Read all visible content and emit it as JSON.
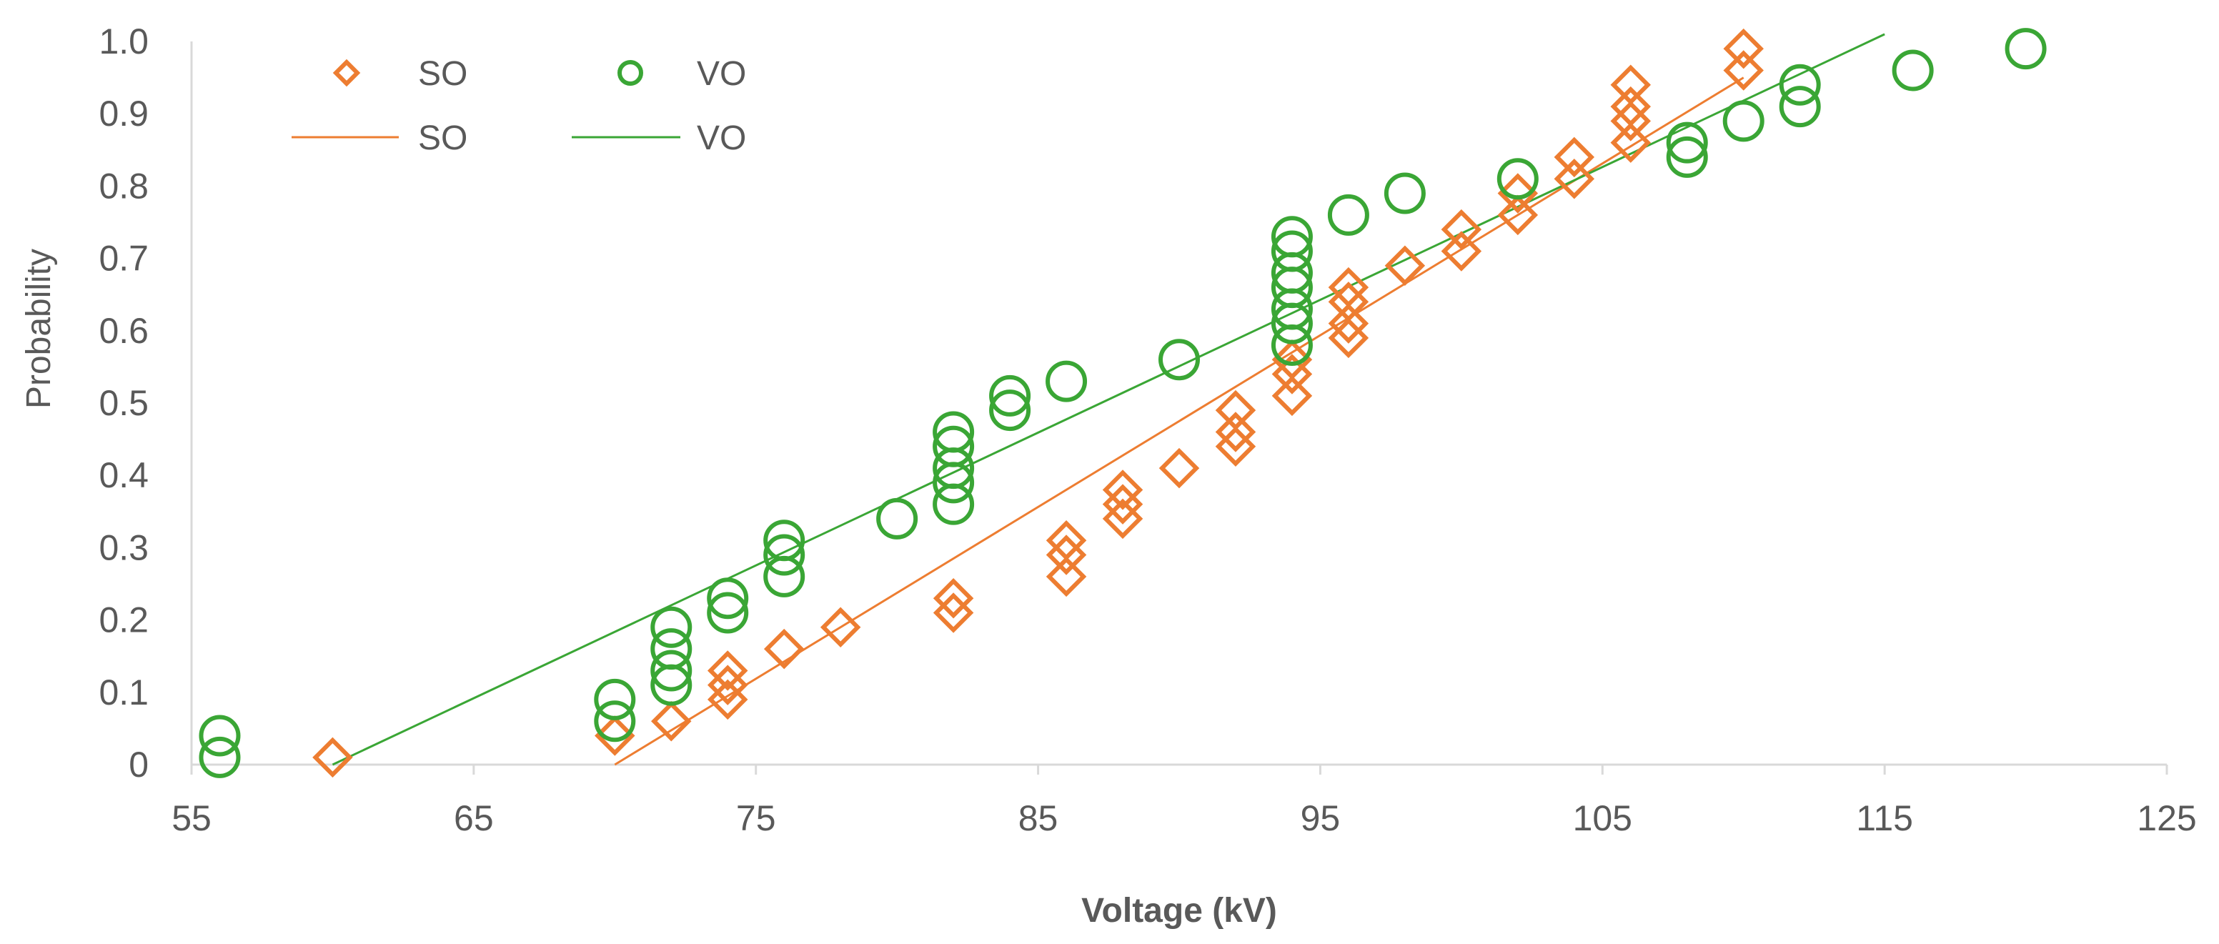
{
  "chart_data": {
    "type": "scatter",
    "title": "",
    "xlabel": "Voltage (kV)",
    "ylabel": "Probability",
    "xlim": [
      55,
      125
    ],
    "ylim": [
      0,
      1.0
    ],
    "x_ticks": [
      "55",
      "65",
      "75",
      "85",
      "95",
      "105",
      "115",
      "125"
    ],
    "y_ticks": [
      "0",
      "0.1",
      "0.2",
      "0.3",
      "0.4",
      "0.5",
      "0.6",
      "0.7",
      "0.8",
      "0.9",
      "1.0"
    ],
    "grid": false,
    "legend_position": "top-left",
    "colors": {
      "so": "#ED7D31",
      "vo": "#3AA635",
      "axis": "#D9D9D9"
    },
    "series": [
      {
        "name": "SO",
        "marker": "diamond",
        "points": [
          [
            60,
            0.01
          ],
          [
            70,
            0.04
          ],
          [
            72,
            0.06
          ],
          [
            74,
            0.09
          ],
          [
            74,
            0.11
          ],
          [
            74,
            0.13
          ],
          [
            76,
            0.16
          ],
          [
            78,
            0.19
          ],
          [
            82,
            0.21
          ],
          [
            82,
            0.23
          ],
          [
            86,
            0.26
          ],
          [
            86,
            0.29
          ],
          [
            86,
            0.31
          ],
          [
            88,
            0.34
          ],
          [
            88,
            0.36
          ],
          [
            88,
            0.38
          ],
          [
            90,
            0.41
          ],
          [
            92,
            0.44
          ],
          [
            92,
            0.46
          ],
          [
            92,
            0.49
          ],
          [
            94,
            0.51
          ],
          [
            94,
            0.54
          ],
          [
            94,
            0.56
          ],
          [
            96,
            0.59
          ],
          [
            96,
            0.61
          ],
          [
            96,
            0.64
          ],
          [
            96,
            0.66
          ],
          [
            98,
            0.69
          ],
          [
            100,
            0.71
          ],
          [
            100,
            0.74
          ],
          [
            102,
            0.76
          ],
          [
            102,
            0.79
          ],
          [
            104,
            0.81
          ],
          [
            104,
            0.84
          ],
          [
            106,
            0.86
          ],
          [
            106,
            0.89
          ],
          [
            106,
            0.91
          ],
          [
            106,
            0.94
          ],
          [
            110,
            0.96
          ],
          [
            110,
            0.99
          ]
        ]
      },
      {
        "name": "VO",
        "marker": "circle",
        "points": [
          [
            56,
            0.01
          ],
          [
            56,
            0.04
          ],
          [
            70,
            0.06
          ],
          [
            70,
            0.09
          ],
          [
            72,
            0.11
          ],
          [
            72,
            0.13
          ],
          [
            72,
            0.16
          ],
          [
            72,
            0.19
          ],
          [
            74,
            0.21
          ],
          [
            74,
            0.23
          ],
          [
            76,
            0.26
          ],
          [
            76,
            0.29
          ],
          [
            76,
            0.31
          ],
          [
            80,
            0.34
          ],
          [
            82,
            0.36
          ],
          [
            82,
            0.39
          ],
          [
            82,
            0.41
          ],
          [
            82,
            0.44
          ],
          [
            82,
            0.46
          ],
          [
            84,
            0.49
          ],
          [
            84,
            0.51
          ],
          [
            86,
            0.53
          ],
          [
            90,
            0.56
          ],
          [
            94,
            0.58
          ],
          [
            94,
            0.61
          ],
          [
            94,
            0.63
          ],
          [
            94,
            0.66
          ],
          [
            94,
            0.68
          ],
          [
            94,
            0.71
          ],
          [
            94,
            0.73
          ],
          [
            96,
            0.76
          ],
          [
            98,
            0.79
          ],
          [
            102,
            0.81
          ],
          [
            108,
            0.84
          ],
          [
            108,
            0.86
          ],
          [
            110,
            0.89
          ],
          [
            112,
            0.91
          ],
          [
            112,
            0.94
          ],
          [
            116,
            0.96
          ],
          [
            120,
            0.99
          ]
        ]
      }
    ],
    "fit_lines": [
      {
        "name": "SO",
        "x": [
          70,
          110
        ],
        "y": [
          0.0,
          0.95
        ]
      },
      {
        "name": "VO",
        "x": [
          60,
          115
        ],
        "y": [
          0.0,
          1.01
        ]
      }
    ],
    "legend": [
      {
        "label": "SO",
        "kind": "marker",
        "series": "SO"
      },
      {
        "label": "VO",
        "kind": "marker",
        "series": "VO"
      },
      {
        "label": "SO",
        "kind": "line",
        "series": "SO"
      },
      {
        "label": "VO",
        "kind": "line",
        "series": "VO"
      }
    ]
  }
}
